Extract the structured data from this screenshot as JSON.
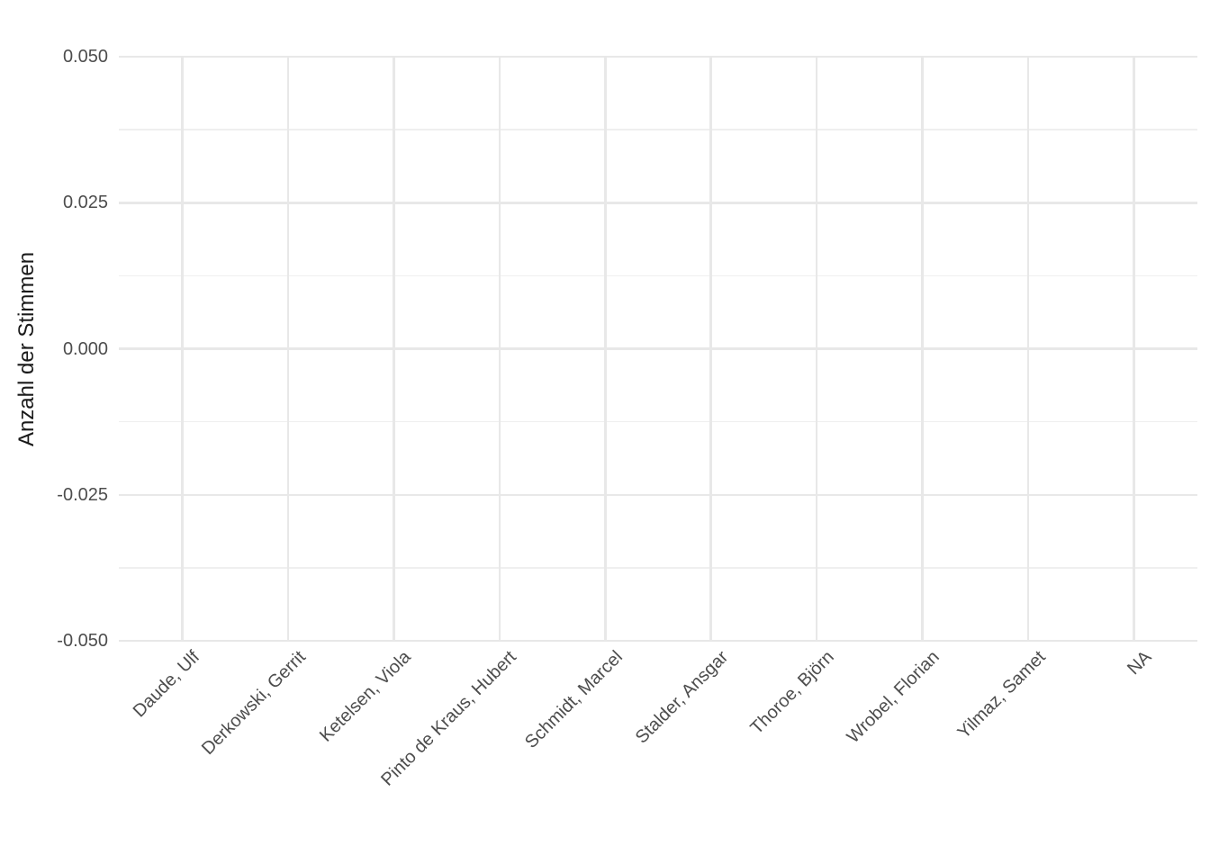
{
  "chart_data": {
    "type": "bar",
    "categories": [
      "Daude, Ulf",
      "Derkowski, Gerrit",
      "Ketelsen, Viola",
      "Pinto de Kraus, Hubert",
      "Schmidt, Marcel",
      "Stalder, Ansgar",
      "Thoroe, Björn",
      "Wrobel, Florian",
      "Yilmaz, Samet",
      "NA"
    ],
    "values": [
      0,
      0,
      0,
      0,
      0,
      0,
      0,
      0,
      0,
      0
    ],
    "ylabel": "Anzahl der Stimmen",
    "xlabel": "",
    "ylim": [
      -0.05,
      0.05
    ],
    "yticks": [
      0.05,
      0.025,
      0.0,
      -0.025,
      -0.05
    ],
    "ytick_labels": [
      "0.050",
      "0.025",
      "0.000",
      "-0.025",
      "-0.050"
    ],
    "yticks_minor": [
      0.0375,
      0.0125,
      -0.0125,
      -0.0375
    ],
    "grid": true,
    "legend_position": "none",
    "colors": {
      "background": "#ffffff",
      "grid_major": "#e8e8e8",
      "grid_minor": "#efefef",
      "tick_text": "#4d4d4d",
      "axis_title": "#1a1a1a"
    }
  }
}
